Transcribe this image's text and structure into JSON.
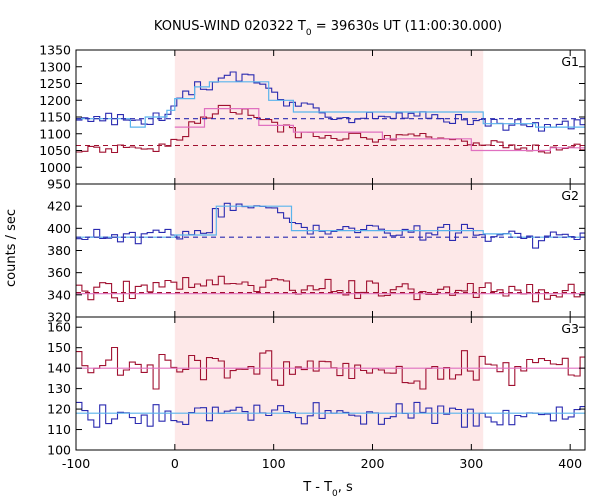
{
  "chart_data": {
    "type": "line",
    "title": "KONUS-WIND 020322 T",
    "title_sub": "0",
    "title_rest": " = 39630s UT (11:00:30.000)",
    "xlabel": "T - T",
    "xlabel_sub": "0",
    "xlabel_rest": ", s",
    "ylabel": "counts / sec",
    "xlim": [
      -100,
      415
    ],
    "x_ticks": [
      -100,
      0,
      100,
      200,
      300,
      400
    ],
    "x_tick_labels": [
      "-100",
      "0",
      "100",
      "200",
      "300",
      "400"
    ],
    "highlight_interval": [
      0,
      312
    ],
    "highlight_color": "#fde8e8",
    "colors": {
      "blue": "#2a2ab0",
      "red": "#a01030",
      "cyan": "#5ab4ec",
      "pink": "#e070c0"
    },
    "bin_width": 6,
    "panels": [
      {
        "label": "G1",
        "ylim": [
          950,
          1350
        ],
        "y_ticks": [
          950,
          1000,
          1050,
          1100,
          1150,
          1200,
          1250,
          1300,
          1350
        ],
        "y_tick_labels": [
          "950",
          "1000",
          "1050",
          "1100",
          "1150",
          "1200",
          "1250",
          "1300",
          "1350"
        ],
        "series": [
          {
            "color": "blue",
            "style": "step",
            "profile": [
              [
                -100,
                1140
              ],
              [
                -10,
                1145
              ],
              [
                0,
                1195
              ],
              [
                20,
                1225
              ],
              [
                40,
                1255
              ],
              [
                60,
                1272
              ],
              [
                80,
                1268
              ],
              [
                95,
                1240
              ],
              [
                105,
                1195
              ],
              [
                130,
                1180
              ],
              [
                170,
                1160
              ],
              [
                220,
                1150
              ],
              [
                312,
                1140
              ],
              [
                360,
                1130
              ],
              [
                415,
                1125
              ]
            ],
            "noise": 16,
            "seed": 3
          },
          {
            "color": "red",
            "style": "step",
            "profile": [
              [
                -100,
                1055
              ],
              [
                -10,
                1060
              ],
              [
                0,
                1080
              ],
              [
                20,
                1130
              ],
              [
                40,
                1165
              ],
              [
                70,
                1170
              ],
              [
                90,
                1140
              ],
              [
                120,
                1110
              ],
              [
                170,
                1095
              ],
              [
                250,
                1085
              ],
              [
                312,
                1075
              ],
              [
                360,
                1060
              ],
              [
                415,
                1055
              ]
            ],
            "noise": 14,
            "seed": 7
          },
          {
            "color": "cyan",
            "style": "solid",
            "points": [
              [
                -100,
                1145
              ],
              [
                -45,
                1145
              ],
              [
                -45,
                1120
              ],
              [
                -30,
                1120
              ],
              [
                -30,
                1150
              ],
              [
                -8,
                1150
              ],
              [
                -8,
                1170
              ],
              [
                0,
                1170
              ],
              [
                0,
                1205
              ],
              [
                20,
                1205
              ],
              [
                20,
                1240
              ],
              [
                35,
                1240
              ],
              [
                35,
                1255
              ],
              [
                95,
                1255
              ],
              [
                95,
                1200
              ],
              [
                120,
                1200
              ],
              [
                120,
                1165
              ],
              [
                312,
                1165
              ],
              [
                312,
                1130
              ],
              [
                365,
                1130
              ],
              [
                365,
                1120
              ],
              [
                415,
                1120
              ]
            ]
          },
          {
            "color": "pink",
            "style": "solid",
            "points": [
              [
                0,
                1120
              ],
              [
                30,
                1120
              ],
              [
                30,
                1175
              ],
              [
                85,
                1175
              ],
              [
                85,
                1125
              ],
              [
                120,
                1125
              ],
              [
                120,
                1105
              ],
              [
                210,
                1105
              ],
              [
                210,
                1085
              ],
              [
                300,
                1085
              ],
              [
                300,
                1050
              ],
              [
                380,
                1050
              ],
              [
                380,
                1058
              ],
              [
                415,
                1058
              ]
            ]
          },
          {
            "color": "blue",
            "style": "dashed",
            "points": [
              [
                -100,
                1145
              ],
              [
                415,
                1145
              ]
            ]
          },
          {
            "color": "red",
            "style": "dashed",
            "points": [
              [
                -100,
                1065
              ],
              [
                415,
                1065
              ]
            ]
          }
        ]
      },
      {
        "label": "G2",
        "ylim": [
          320,
          440
        ],
        "y_ticks": [
          320,
          340,
          360,
          380,
          400,
          420
        ],
        "y_tick_labels": [
          "320",
          "340",
          "360",
          "380",
          "400",
          "420"
        ],
        "series": [
          {
            "color": "blue",
            "style": "step",
            "profile": [
              [
                -100,
                392
              ],
              [
                0,
                394
              ],
              [
                35,
                398
              ],
              [
                42,
                418
              ],
              [
                110,
                418
              ],
              [
                120,
                400
              ],
              [
                312,
                396
              ],
              [
                360,
                392
              ],
              [
                415,
                392
              ]
            ],
            "noise": 6,
            "seed": 11
          },
          {
            "color": "red",
            "style": "step",
            "profile": [
              [
                -100,
                343
              ],
              [
                0,
                348
              ],
              [
                60,
                352
              ],
              [
                120,
                348
              ],
              [
                312,
                343
              ],
              [
                415,
                342
              ]
            ],
            "noise": 8,
            "seed": 19
          },
          {
            "color": "cyan",
            "style": "solid",
            "points": [
              [
                -100,
                392
              ],
              [
                0,
                392
              ],
              [
                0,
                394
              ],
              [
                42,
                394
              ],
              [
                42,
                420
              ],
              [
                118,
                420
              ],
              [
                118,
                398
              ],
              [
                312,
                398
              ],
              [
                312,
                395
              ],
              [
                340,
                395
              ],
              [
                340,
                392
              ],
              [
                415,
                392
              ]
            ]
          },
          {
            "color": "pink",
            "style": "solid",
            "points": [
              [
                -100,
                341
              ],
              [
                415,
                341
              ]
            ]
          },
          {
            "color": "blue",
            "style": "dashed",
            "points": [
              [
                -100,
                392
              ],
              [
                415,
                392
              ]
            ]
          },
          {
            "color": "red",
            "style": "dashed",
            "points": [
              [
                -100,
                342
              ],
              [
                415,
                342
              ]
            ]
          }
        ]
      },
      {
        "label": "G3",
        "ylim": [
          100,
          165
        ],
        "y_ticks": [
          100,
          110,
          120,
          130,
          140,
          150,
          160
        ],
        "y_tick_labels": [
          "100",
          "110",
          "120",
          "130",
          "140",
          "150",
          "160"
        ],
        "series": [
          {
            "color": "red",
            "style": "step",
            "profile": [
              [
                -100,
                140
              ],
              [
                415,
                140
              ]
            ],
            "noise": 7,
            "seed": 23
          },
          {
            "color": "blue",
            "style": "step",
            "profile": [
              [
                -100,
                117
              ],
              [
                415,
                117
              ]
            ],
            "noise": 5,
            "seed": 29
          },
          {
            "color": "pink",
            "style": "solid",
            "points": [
              [
                -100,
                140
              ],
              [
                415,
                140
              ]
            ]
          },
          {
            "color": "cyan",
            "style": "solid",
            "points": [
              [
                -100,
                118
              ],
              [
                415,
                118
              ]
            ]
          }
        ]
      }
    ]
  }
}
